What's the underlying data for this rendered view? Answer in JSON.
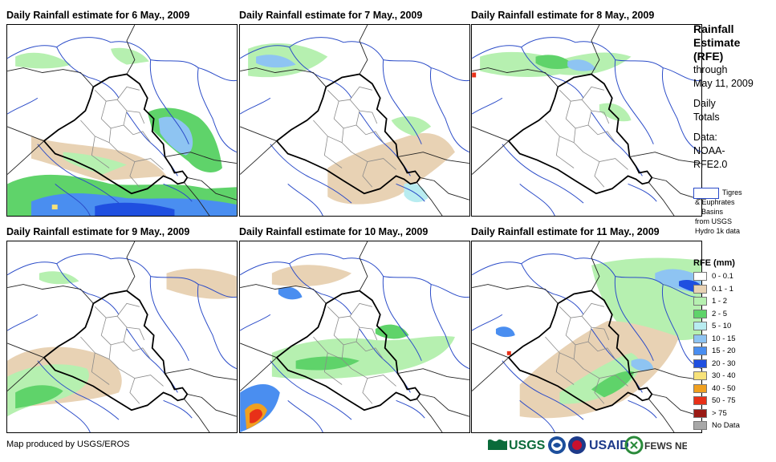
{
  "panels": [
    {
      "title": "Daily Rainfall estimate for 6 May., 2009"
    },
    {
      "title": "Daily Rainfall estimate for 7 May., 2009"
    },
    {
      "title": "Daily Rainfall estimate for 8 May., 2009"
    },
    {
      "title": "Daily Rainfall estimate for 9 May., 2009"
    },
    {
      "title": "Daily Rainfall estimate for 10 May., 2009"
    },
    {
      "title": "Daily Rainfall estimate for 11 May., 2009"
    }
  ],
  "sidebar": {
    "heading_lines": [
      "Rainfall",
      "Estimate",
      "(RFE)"
    ],
    "through": "through",
    "date": "May 11, 2009",
    "daily": "Daily",
    "totals": "Totals",
    "data_label": "Data:",
    "data_src_1": "NOAA-",
    "data_src_2": "RFE2.0"
  },
  "basin_legend": {
    "line1": "Tigres",
    "line2": "& Euphrates",
    "line3": "Basins",
    "line4": "from USGS",
    "line5": "Hydro 1k data"
  },
  "legend": {
    "title": "RFE (mm)",
    "items": [
      {
        "label": "0 - 0.1",
        "color": "#ffffff"
      },
      {
        "label": "0.1 - 1",
        "color": "#e8d2b4"
      },
      {
        "label": "1 - 2",
        "color": "#b6f0b0"
      },
      {
        "label": "2 - 5",
        "color": "#5fd36a"
      },
      {
        "label": "5 - 10",
        "color": "#b8ecf0"
      },
      {
        "label": "10 - 15",
        "color": "#8ec4f2"
      },
      {
        "label": "15 - 20",
        "color": "#4a8ef0"
      },
      {
        "label": "20 - 30",
        "color": "#1f4fe0"
      },
      {
        "label": "30 - 40",
        "color": "#f7e27a"
      },
      {
        "label": "40 - 50",
        "color": "#f0a020"
      },
      {
        "label": "50 - 75",
        "color": "#e83018"
      },
      {
        "label": "> 75",
        "color": "#9a1a14"
      },
      {
        "label": "No Data",
        "color": "#a8a8a8"
      }
    ]
  },
  "credit": "Map produced by USGS/EROS",
  "logos": {
    "usgs": "USGS",
    "usaid": "USAID",
    "fews": "FEWS NET"
  }
}
